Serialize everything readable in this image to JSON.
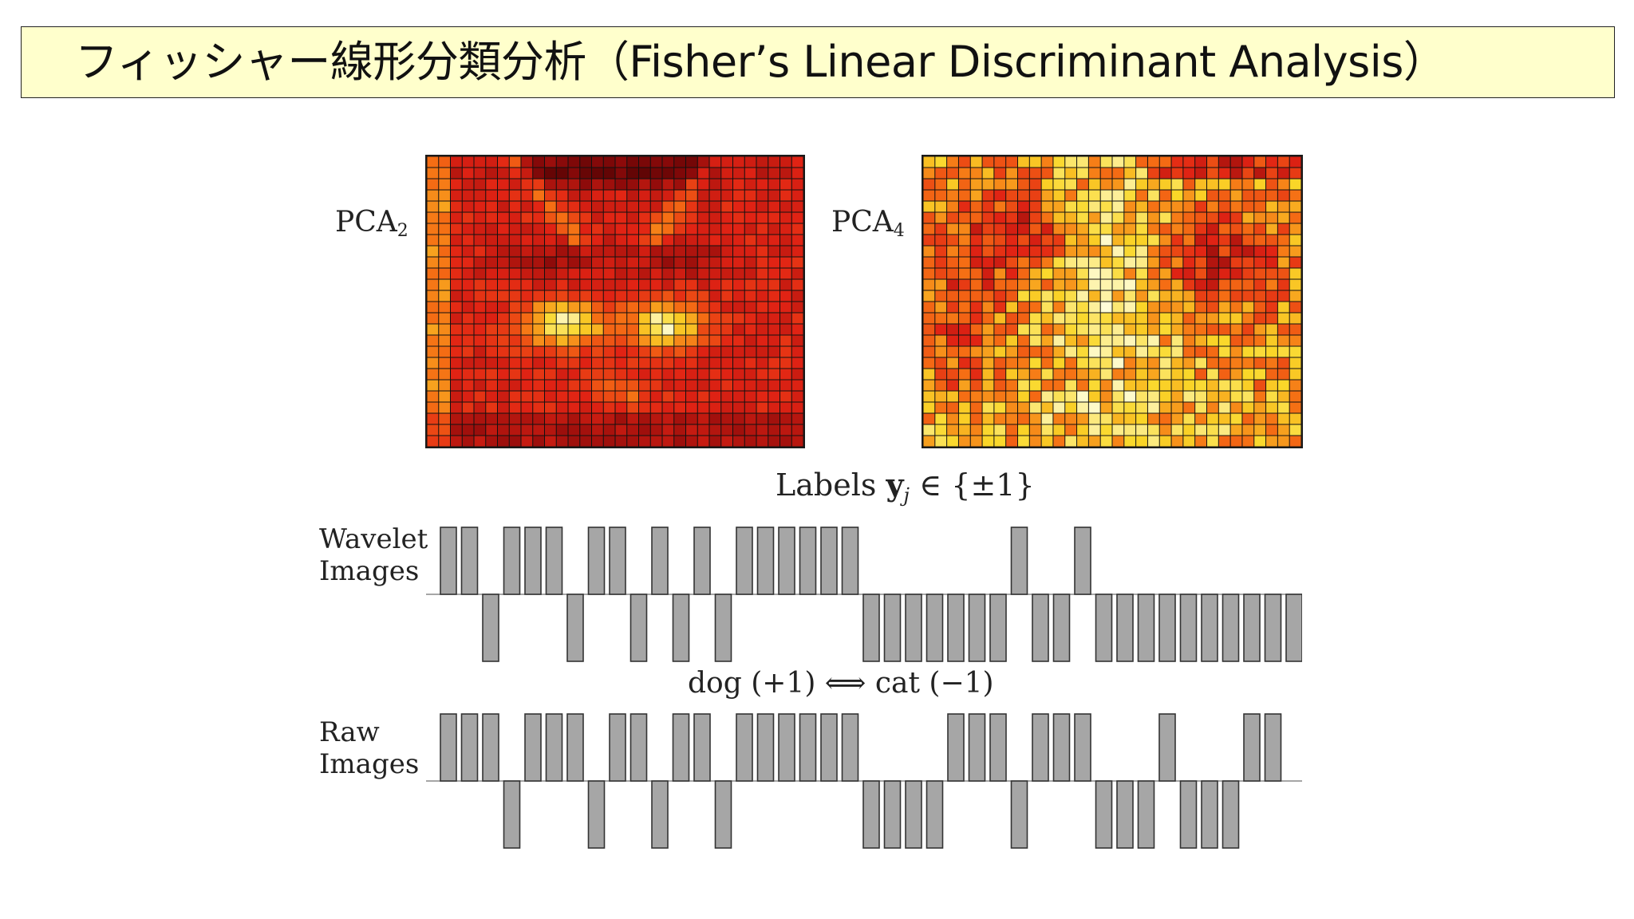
{
  "slide": {
    "title": "フィッシャー線形分類分析（Fisher’s Linear Discriminant Analysis）"
  },
  "pca": [
    {
      "name": "PCA",
      "index": "2"
    },
    {
      "name": "PCA",
      "index": "4"
    }
  ],
  "labels_line": {
    "prefix": "Labels ",
    "var": "y",
    "sub": "j",
    "suffix": " ∈ {±1}"
  },
  "rows": {
    "wavelet": {
      "line1": "Wavelet",
      "line2": "Images"
    },
    "raw": {
      "line1": "Raw",
      "line2": "Images"
    }
  },
  "mid_label": "dog (+1)  ⟺  cat (−1)",
  "colors": {
    "title_bg": "#ffffcc",
    "bar_fill": "#a6a6a6",
    "bar_stroke": "#333333",
    "heat_low": "#3a0000",
    "heat_high": "#ffffdd"
  },
  "chart_data": [
    {
      "type": "bar",
      "title": "",
      "series": [
        {
          "values": [
            1,
            1,
            -1,
            1,
            1,
            1,
            -1,
            1,
            1,
            -1,
            1,
            -1,
            1,
            -1,
            1,
            1,
            1,
            1,
            1,
            1,
            -1,
            -1,
            -1,
            -1,
            -1,
            -1,
            -1,
            1,
            -1,
            -1,
            1,
            -1,
            -1,
            -1,
            -1,
            -1,
            -1,
            -1,
            -1,
            -1,
            -1
          ]
        }
      ],
      "ylim": [
        -1,
        1
      ]
    },
    {
      "type": "bar",
      "title": "",
      "series": [
        {
          "values": [
            1,
            1,
            1,
            -1,
            1,
            1,
            1,
            -1,
            1,
            1,
            -1,
            1,
            1,
            -1,
            1,
            1,
            1,
            1,
            1,
            1,
            -1,
            -1,
            -1,
            -1,
            1,
            1,
            1,
            -1,
            1,
            1,
            1,
            -1,
            -1,
            -1,
            1,
            -1,
            -1,
            -1,
            1,
            1
          ]
        }
      ],
      "ylim": [
        -1,
        1
      ]
    }
  ]
}
